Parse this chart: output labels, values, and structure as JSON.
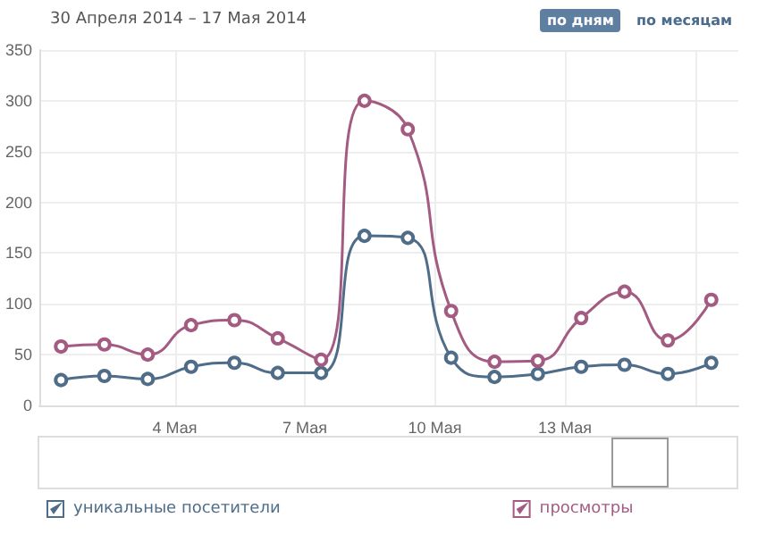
{
  "chart_data": {
    "type": "line",
    "title": "30 Апреля 2014 – 17 Мая 2014",
    "annotations": [
      "по дням",
      "по месяцам"
    ],
    "x": [
      "2014-05-01T09:00",
      "2014-05-02T09:00",
      "2014-05-03T09:00",
      "2014-05-04T09:00",
      "2014-05-05T09:00",
      "2014-05-06T09:00",
      "2014-05-07T09:00",
      "2014-05-08T09:00",
      "2014-05-09T09:00",
      "2014-05-10T09:00",
      "2014-05-11T09:00",
      "2014-05-12T09:00",
      "2014-05-13T09:00",
      "2014-05-14T09:00",
      "2014-05-15T09:00",
      "2014-05-16T09:00"
    ],
    "series": [
      {
        "name": "уникальные посетители",
        "color": "#4f6d88",
        "values": [
          25,
          29,
          26,
          38,
          42,
          32,
          32,
          167,
          165,
          47,
          28,
          31,
          38,
          40,
          31,
          42
        ]
      },
      {
        "name": "просмотры",
        "color": "#a45b82",
        "values": [
          58,
          60,
          50,
          79,
          84,
          66,
          45,
          300,
          272,
          93,
          43,
          44,
          86,
          112,
          64,
          104
        ]
      }
    ],
    "xlim": [
      "2014-04-30T21:00",
      "2014-05-17T00:00"
    ],
    "xticks": [
      {
        "value": "2014-05-04",
        "label": "4 Мая"
      },
      {
        "value": "2014-05-07",
        "label": "7 Мая"
      },
      {
        "value": "2014-05-10",
        "label": "10 Мая"
      },
      {
        "value": "2014-05-13",
        "label": "13 Мая"
      },
      {
        "value": "2014-05-16",
        "label": null
      }
    ],
    "ylim": [
      0,
      350
    ],
    "yticks": [
      0,
      50,
      100,
      150,
      200,
      250,
      300,
      350
    ],
    "grid": true,
    "legend": "bottom",
    "marker": "circle",
    "line_style": "solid"
  }
}
